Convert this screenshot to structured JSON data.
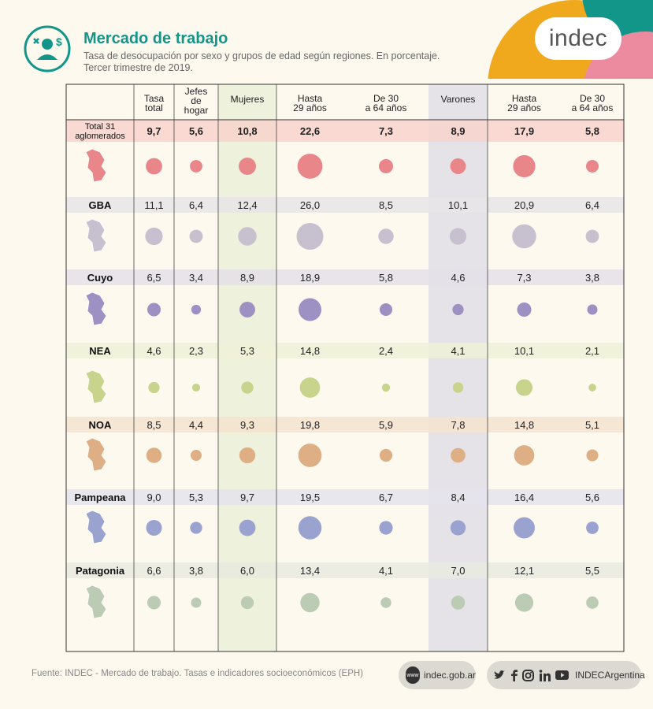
{
  "header": {
    "title": "Mercado de trabajo",
    "subtitle_line1": "Tasa de desocupación por sexo y grupos de edad según regiones. En porcentaje.",
    "subtitle_line2": "Tercer trimestre de 2019."
  },
  "brand": {
    "logo_text": "indec"
  },
  "colors": {
    "background": "#fdf9ef",
    "title": "#12968a",
    "mujeres_band": "#eef1dc",
    "varones_band": "#e6e3e8"
  },
  "columns": [
    {
      "label": "Tasa\ntotal"
    },
    {
      "label": "Jefes\nde\nhogar"
    },
    {
      "label": "Mujeres"
    },
    {
      "label": "Hasta\n29 años"
    },
    {
      "label": "De 30\na 64 años"
    },
    {
      "label": "Varones"
    },
    {
      "label": "Hasta\n29 años"
    },
    {
      "label": "De 30\na 64 años"
    }
  ],
  "chart_data": {
    "type": "table",
    "unit": "%",
    "columns": [
      "Tasa total",
      "Jefes de hogar",
      "Mujeres",
      "Mujeres hasta 29 años",
      "Mujeres de 30 a 64 años",
      "Varones",
      "Varones hasta 29 años",
      "Varones de 30 a 64 años"
    ],
    "rows": [
      {
        "region": "Total 31\naglomerados",
        "values": [
          "9,7",
          "5,6",
          "10,8",
          "22,6",
          "7,3",
          "8,9",
          "17,9",
          "5,8"
        ],
        "band_color": "#f8d3cc",
        "dot_color": "#e8868a",
        "bold": true,
        "map_color": "#e8868a"
      },
      {
        "region": "GBA",
        "values": [
          "11,1",
          "6,4",
          "12,4",
          "26,0",
          "8,5",
          "10,1",
          "20,9",
          "6,4"
        ],
        "band_color": "#e8e5e8",
        "dot_color": "#c7c1cf",
        "bold": false,
        "map_color": "#c7c1cf"
      },
      {
        "region": "Cuyo",
        "values": [
          "6,5",
          "3,4",
          "8,9",
          "18,9",
          "5,8",
          "4,6",
          "7,3",
          "3,8"
        ],
        "band_color": "#e4e1e9",
        "dot_color": "#9c91c2",
        "bold": false,
        "map_color": "#9c91c2"
      },
      {
        "region": "NEA",
        "values": [
          "4,6",
          "2,3",
          "5,3",
          "14,8",
          "2,4",
          "4,1",
          "10,1",
          "2,1"
        ],
        "band_color": "#eef1d8",
        "dot_color": "#c8d38b",
        "bold": false,
        "map_color": "#c8d38b"
      },
      {
        "region": "NOA",
        "values": [
          "8,5",
          "4,4",
          "9,3",
          "19,8",
          "5,9",
          "7,8",
          "14,8",
          "5,1"
        ],
        "band_color": "#f5e3cf",
        "dot_color": "#deaf85",
        "bold": false,
        "map_color": "#deaf85"
      },
      {
        "region": "Pampeana",
        "values": [
          "9,0",
          "5,3",
          "9,7",
          "19,5",
          "6,7",
          "8,4",
          "16,4",
          "5,6"
        ],
        "band_color": "#e4e4ec",
        "dot_color": "#9aa3cf",
        "bold": false,
        "map_color": "#9aa3cf"
      },
      {
        "region": "Patagonia",
        "values": [
          "6,6",
          "3,8",
          "6,0",
          "13,4",
          "4,1",
          "7,0",
          "12,1",
          "5,5"
        ],
        "band_color": "#e8eadf",
        "dot_color": "#bccbb4",
        "bold": false,
        "map_color": "#bccbb4"
      }
    ]
  },
  "footer": {
    "source": "Fuente: INDEC - Mercado de trabajo. Tasas e indicadores socioeconómicos (EPH)",
    "web_badge": "www",
    "website": "indec.gob.ar",
    "social_handle": "INDECArgentina",
    "social_icons": [
      "twitter-icon",
      "facebook-icon",
      "instagram-icon",
      "linkedin-icon",
      "youtube-icon"
    ]
  }
}
